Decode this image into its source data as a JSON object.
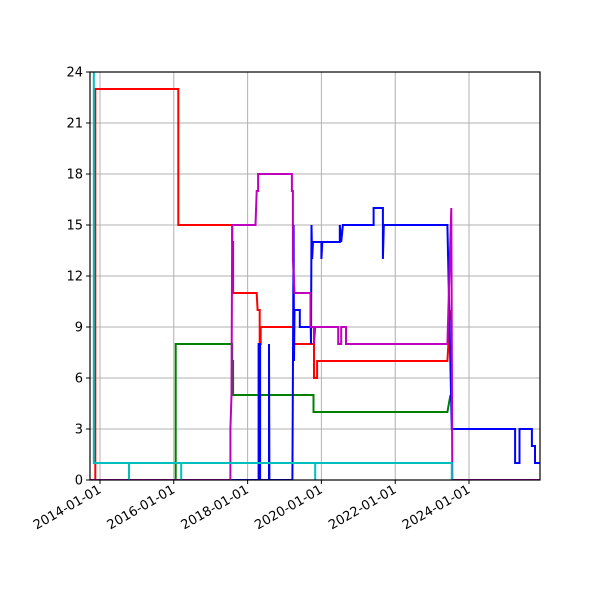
{
  "chart_data": {
    "type": "line",
    "title": "",
    "xlabel": "",
    "ylabel": "",
    "ylim": [
      0,
      24
    ],
    "yticks": [
      0,
      3,
      6,
      9,
      12,
      15,
      18,
      21,
      24
    ],
    "xticks": [
      "2014-01-01",
      "2016-01-01",
      "2018-01-01",
      "2020-01-01",
      "2022-01-01",
      "2024-01-01"
    ],
    "xlim": [
      "2013-09-15",
      "2025-12-31"
    ],
    "grid": true,
    "legend": null,
    "series": [
      {
        "name": "red",
        "color": "#ff0000",
        "points": [
          [
            "2013-11-15",
            0
          ],
          [
            "2013-11-15",
            23
          ],
          [
            "2016-02-15",
            23
          ],
          [
            "2016-02-15",
            15
          ],
          [
            "2017-08-01",
            15
          ],
          [
            "2017-08-01",
            14
          ],
          [
            "2017-08-10",
            14
          ],
          [
            "2017-08-10",
            11
          ],
          [
            "2018-04-01",
            11
          ],
          [
            "2018-04-10",
            10
          ],
          [
            "2018-05-01",
            10
          ],
          [
            "2018-05-01",
            8
          ],
          [
            "2018-05-10",
            8
          ],
          [
            "2018-05-10",
            9
          ],
          [
            "2019-04-01",
            9
          ],
          [
            "2019-04-01",
            8
          ],
          [
            "2019-10-20",
            8
          ],
          [
            "2019-10-20",
            6
          ],
          [
            "2019-11-20",
            6
          ],
          [
            "2019-11-20",
            7
          ],
          [
            "2023-06-01",
            7
          ],
          [
            "2023-07-01",
            10
          ]
        ]
      },
      {
        "name": "green",
        "color": "#008000",
        "points": [
          [
            "2016-01-20",
            0
          ],
          [
            "2016-01-20",
            8
          ],
          [
            "2017-08-01",
            8
          ],
          [
            "2017-08-01",
            7
          ],
          [
            "2017-08-10",
            7
          ],
          [
            "2017-08-10",
            5
          ],
          [
            "2019-10-15",
            5
          ],
          [
            "2019-10-15",
            4
          ],
          [
            "2023-06-01",
            4
          ],
          [
            "2023-07-01",
            5
          ]
        ]
      },
      {
        "name": "blue",
        "color": "#0000ff",
        "points": [
          [
            "2017-07-15",
            0
          ],
          [
            "2018-04-20",
            0
          ],
          [
            "2018-04-20",
            8
          ],
          [
            "2018-05-05",
            8
          ],
          [
            "2018-05-05",
            0
          ],
          [
            "2018-08-01",
            0
          ],
          [
            "2018-08-01",
            8
          ],
          [
            "2018-08-05",
            0
          ],
          [
            "2019-03-20",
            0
          ],
          [
            "2019-03-25",
            6
          ],
          [
            "2019-04-01",
            15
          ],
          [
            "2019-04-05",
            7
          ],
          [
            "2019-04-10",
            10
          ],
          [
            "2019-06-01",
            10
          ],
          [
            "2019-06-01",
            9
          ],
          [
            "2019-09-15",
            9
          ],
          [
            "2019-09-15",
            10
          ],
          [
            "2019-09-20",
            8
          ],
          [
            "2019-09-25",
            15
          ],
          [
            "2019-10-01",
            13
          ],
          [
            "2019-10-10",
            14
          ],
          [
            "2020-01-01",
            14
          ],
          [
            "2020-01-01",
            13
          ],
          [
            "2020-01-10",
            14
          ],
          [
            "2020-07-01",
            14
          ],
          [
            "2020-07-01",
            15
          ],
          [
            "2020-07-15",
            14
          ],
          [
            "2020-08-01",
            15
          ],
          [
            "2021-06-01",
            15
          ],
          [
            "2021-06-01",
            16
          ],
          [
            "2021-09-01",
            16
          ],
          [
            "2021-09-01",
            13
          ],
          [
            "2021-09-10",
            15
          ],
          [
            "2023-06-01",
            15
          ],
          [
            "2023-07-15",
            3
          ],
          [
            "2026-01-01",
            3
          ],
          [
            "2026-01-01",
            3
          ]
        ],
        "tail": [
          [
            "2023-07-15",
            3
          ],
          [
            "2025-04-01",
            3
          ],
          [
            "2025-04-01",
            1
          ],
          [
            "2025-05-15",
            1
          ],
          [
            "2025-05-15",
            3
          ],
          [
            "2025-09-15",
            3
          ],
          [
            "2025-09-15",
            2
          ],
          [
            "2025-10-15",
            2
          ],
          [
            "2025-10-15",
            1
          ],
          [
            "2026-01-01",
            1
          ]
        ]
      },
      {
        "name": "magenta",
        "color": "#bf00bf",
        "points": [
          [
            "2013-09-20",
            0
          ],
          [
            "2017-07-15",
            0
          ],
          [
            "2017-07-15",
            3
          ],
          [
            "2017-07-25",
            5
          ],
          [
            "2017-08-01",
            15
          ],
          [
            "2018-03-20",
            15
          ],
          [
            "2018-04-01",
            17
          ],
          [
            "2018-04-15",
            17
          ],
          [
            "2018-04-15",
            18
          ],
          [
            "2019-03-15",
            18
          ],
          [
            "2019-03-15",
            17
          ],
          [
            "2019-03-25",
            17
          ],
          [
            "2019-03-25",
            13
          ],
          [
            "2019-04-10",
            11
          ],
          [
            "2019-09-15",
            11
          ],
          [
            "2019-09-15",
            9
          ],
          [
            "2019-10-20",
            9
          ],
          [
            "2019-10-20",
            8
          ],
          [
            "2019-11-01",
            9
          ],
          [
            "2020-06-15",
            9
          ],
          [
            "2020-06-15",
            8
          ],
          [
            "2020-07-15",
            8
          ],
          [
            "2020-07-15",
            9
          ],
          [
            "2020-09-01",
            9
          ],
          [
            "2020-09-01",
            8
          ],
          [
            "2023-06-01",
            8
          ],
          [
            "2023-07-10",
            16
          ],
          [
            "2023-07-20",
            0
          ],
          [
            "2026-01-01",
            0
          ]
        ]
      },
      {
        "name": "cyan",
        "color": "#00bfbf",
        "points": [
          [
            "2013-11-01",
            24
          ],
          [
            "2013-11-01",
            1
          ],
          [
            "2026-01-01",
            1
          ]
        ],
        "drops": [
          "2014-10-15",
          "2016-03-15",
          "2019-11-01"
        ],
        "end": "2023-07-15"
      }
    ]
  }
}
